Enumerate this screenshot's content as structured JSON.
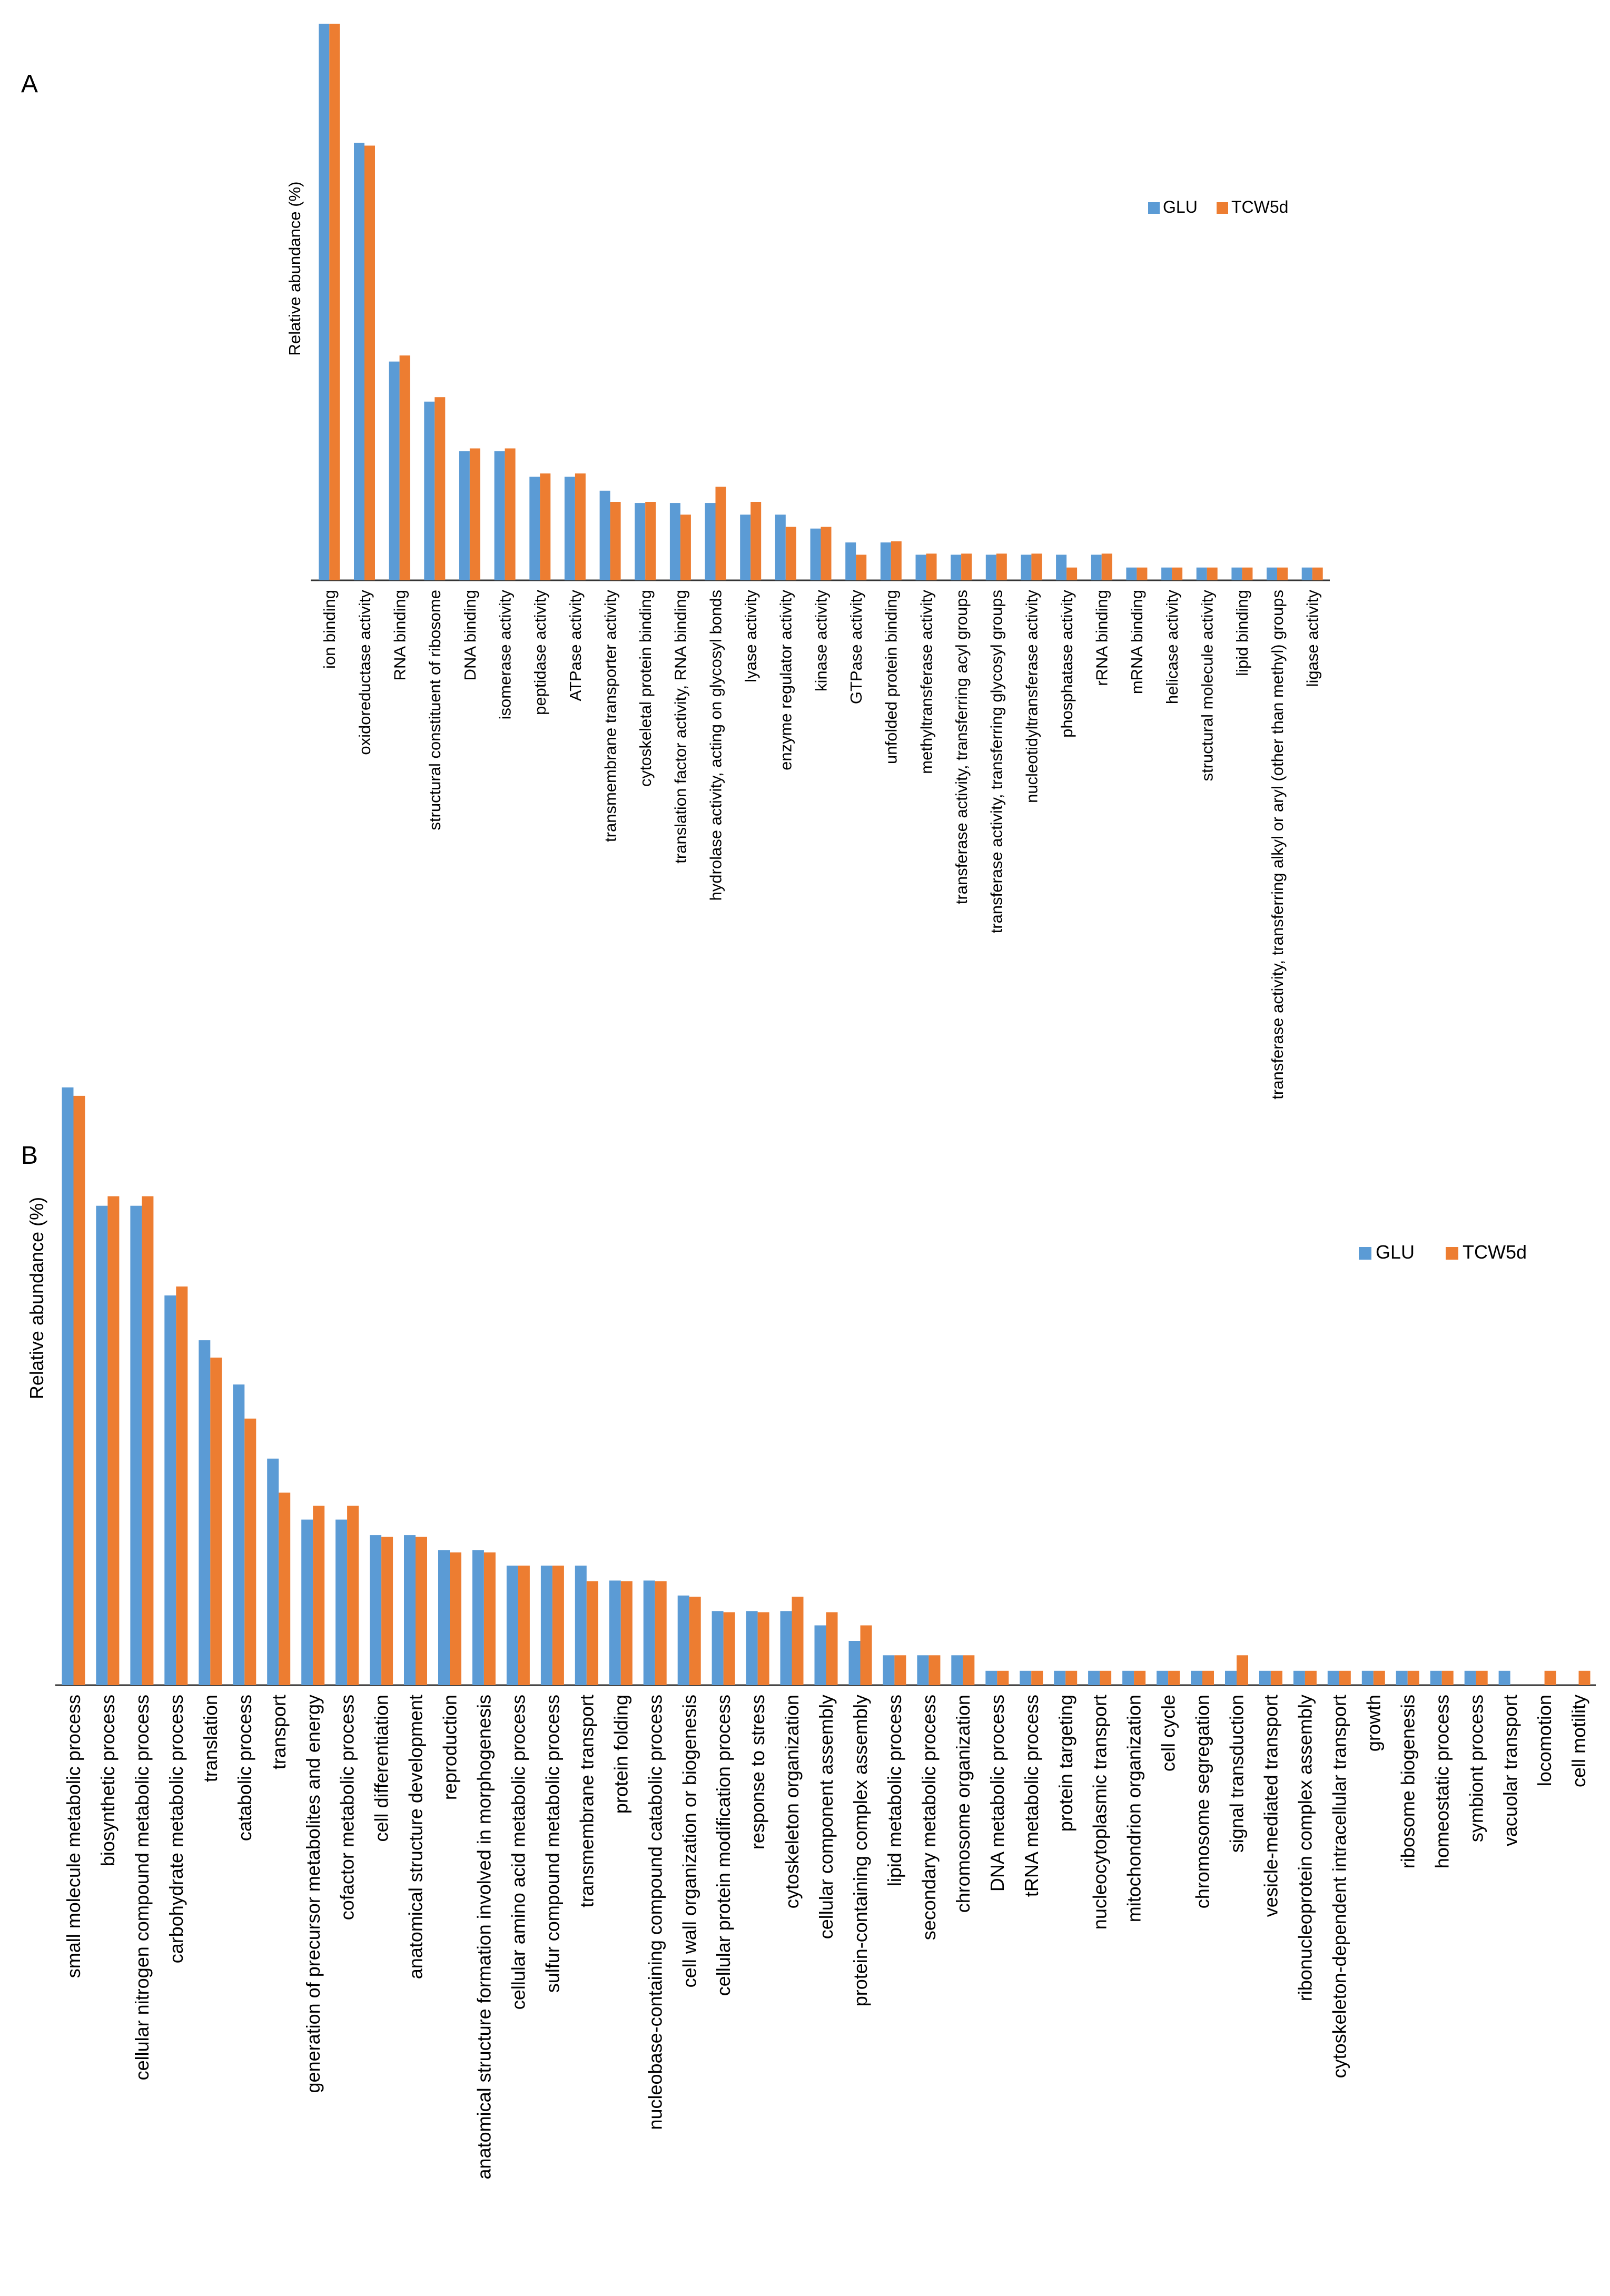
{
  "colors": {
    "glu": "#5B9BD5",
    "tcw": "#ED7D31",
    "axis": "#333333"
  },
  "chart_data": [
    {
      "type": "bar",
      "panel": "A",
      "ylabel": "Relative abundance (%)",
      "legend_position": "right",
      "categories": [
        "ion binding",
        "oxidoreductase activity",
        "RNA binding",
        "structural constituent of ribosome",
        "DNA binding",
        "isomerase activity",
        "peptidase activity",
        "ATPase activity",
        "transmembrane transporter activity",
        "cytoskeletal protein binding",
        "translation factor activity, RNA binding",
        "hydrolase activity, acting on glycosyl bonds",
        "lyase activity",
        "enzyme regulator activity",
        "kinase activity",
        "GTPase activity",
        "unfolded protein binding",
        "methyltransferase activity",
        "transferase activity, transferring acyl groups",
        "transferase activity, transferring glycosyl groups",
        "nucleotidyltransferase activity",
        "phosphatase activity",
        "rRNA binding",
        "mRNA binding",
        "helicase activity",
        "structural molecule activity",
        "lipid binding",
        "transferase activity, transferring alkyl or aryl (other than methyl) groups",
        "ligase activity"
      ],
      "series": [
        {
          "name": "GLU",
          "values": [
            100,
            78.6,
            39.3,
            32.1,
            23.2,
            23.2,
            18.6,
            18.6,
            16.1,
            13.9,
            13.9,
            13.9,
            11.8,
            11.8,
            9.3,
            6.8,
            6.8,
            4.6,
            4.6,
            4.6,
            4.6,
            4.6,
            4.6,
            2.3,
            2.3,
            2.3,
            2.3,
            2.3,
            2.3
          ]
        },
        {
          "name": "TCW5d",
          "values": [
            100,
            78.1,
            40.4,
            32.9,
            23.7,
            23.7,
            19.2,
            19.2,
            14.1,
            14.1,
            11.8,
            16.8,
            14.1,
            9.6,
            9.6,
            4.6,
            7.0,
            4.8,
            4.8,
            4.8,
            4.8,
            2.3,
            4.8,
            2.3,
            2.3,
            2.3,
            2.3,
            2.3,
            2.3
          ]
        }
      ]
    },
    {
      "type": "bar",
      "panel": "B",
      "ylabel": "Relative abundance (%)",
      "legend_position": "right",
      "categories": [
        "small molecule metabolic process",
        "biosynthetic process",
        "cellular nitrogen compound metabolic process",
        "carbohydrate metabolic process",
        "translation",
        "catabolic process",
        "transport",
        "generation of precursor metabolites and energy",
        "cofactor metabolic process",
        "cell differentiation",
        "anatomical structure development",
        "reproduction",
        "anatomical structure formation involved in morphogenesis",
        "cellular amino acid metabolic process",
        "sulfur compound metabolic process",
        "transmembrane transport",
        "protein folding",
        "nucleobase-containing compound catabolic process",
        "cell wall organization or biogenesis",
        "cellular protein modification process",
        "response to stress",
        "cytoskeleton organization",
        "cellular component assembly",
        "protein-containing complex assembly",
        "lipid metabolic process",
        "secondary metabolic process",
        "chromosome organization",
        "DNA metabolic process",
        "tRNA metabolic process",
        "protein targeting",
        "nucleocytoplasmic transport",
        "mitochondrion organization",
        "cell cycle",
        "chromosome segregation",
        "signal transduction",
        "vesicle-mediated transport",
        "ribonucleoprotein complex assembly",
        "cytoskeleton-dependent intracellular transport",
        "growth",
        "ribosome biogenesis",
        "homeostatic process",
        "symbiont process",
        "vacuolar transport",
        "locomotion",
        "cell motility"
      ],
      "series": [
        {
          "name": "GLU",
          "values": [
            100,
            80.2,
            80.2,
            65.2,
            57.7,
            50.3,
            37.9,
            27.7,
            27.7,
            25.1,
            25.1,
            22.6,
            22.6,
            20.0,
            20.0,
            20.0,
            17.5,
            17.5,
            15.0,
            12.4,
            12.4,
            12.4,
            10.0,
            7.4,
            5.0,
            5.0,
            5.0,
            2.4,
            2.4,
            2.4,
            2.4,
            2.4,
            2.4,
            2.4,
            2.4,
            2.4,
            2.4,
            2.4,
            2.4,
            2.4,
            2.4,
            2.4,
            2.4,
            0,
            0
          ]
        },
        {
          "name": "TCW5d",
          "values": [
            98.6,
            81.8,
            81.8,
            66.7,
            54.8,
            44.6,
            32.2,
            30.0,
            30.0,
            24.8,
            24.8,
            22.2,
            22.2,
            20.0,
            20.0,
            17.4,
            17.4,
            17.4,
            14.8,
            12.2,
            12.2,
            14.8,
            12.2,
            10.0,
            5.0,
            5.0,
            5.0,
            2.4,
            2.4,
            2.4,
            2.4,
            2.4,
            2.4,
            2.4,
            5.0,
            2.4,
            2.4,
            2.4,
            2.4,
            2.4,
            2.4,
            2.4,
            0,
            2.4,
            2.4
          ]
        }
      ]
    }
  ]
}
